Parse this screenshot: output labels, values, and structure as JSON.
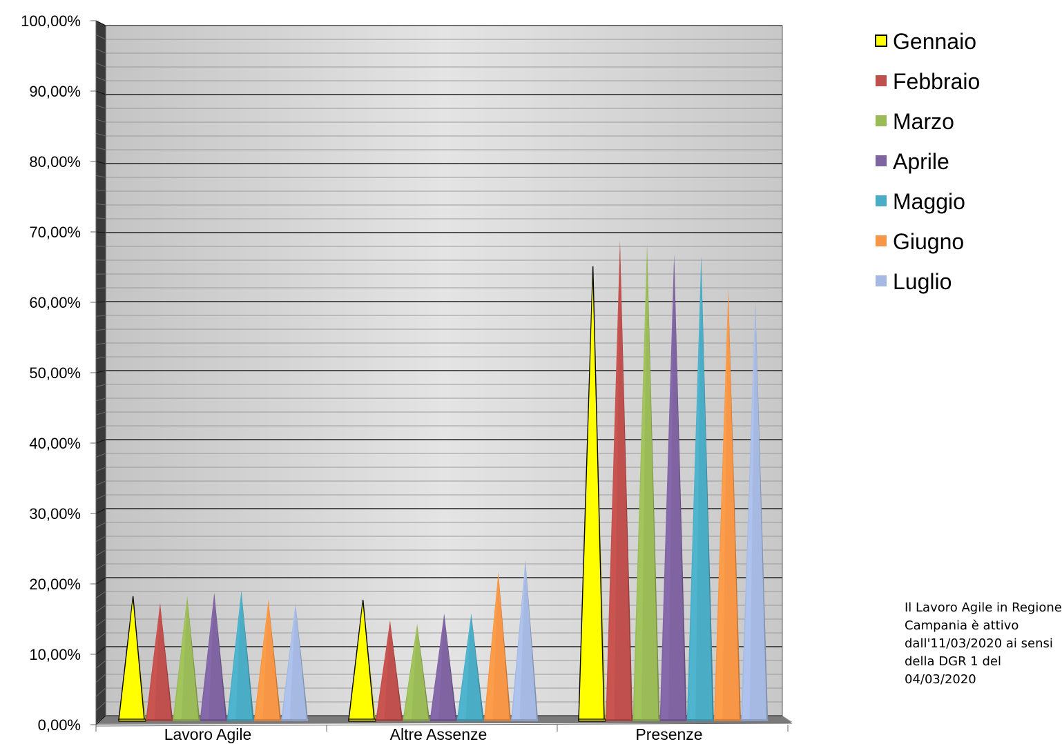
{
  "chart_data": {
    "type": "bar",
    "style": "3d-cone",
    "categories": [
      "Lavoro Agile",
      "Altre Assenze",
      "Presenze"
    ],
    "series": [
      {
        "name": "Gennaio",
        "color": "#FFFF00",
        "values": [
          17.5,
          17.0,
          65.3
        ]
      },
      {
        "name": "Febbraio",
        "color": "#C0504D",
        "values": [
          16.5,
          14.0,
          69.0
        ]
      },
      {
        "name": "Marzo",
        "color": "#9BBB59",
        "values": [
          17.5,
          13.5,
          68.5
        ]
      },
      {
        "name": "Aprile",
        "color": "#8064A2",
        "values": [
          18.0,
          15.0,
          67.0
        ]
      },
      {
        "name": "Maggio",
        "color": "#4BACC6",
        "values": [
          18.3,
          15.0,
          66.8
        ]
      },
      {
        "name": "Giugno",
        "color": "#F79646",
        "values": [
          17.0,
          21.0,
          62.0
        ]
      },
      {
        "name": "Luglio",
        "color": "#A5B9E2",
        "values": [
          16.5,
          22.8,
          60.3
        ]
      }
    ],
    "ylim": [
      0,
      100
    ],
    "ytick_labels": [
      "0,00%",
      "10,00%",
      "20,00%",
      "30,00%",
      "40,00%",
      "50,00%",
      "60,00%",
      "70,00%",
      "80,00%",
      "90,00%",
      "100,00%"
    ],
    "grid": true,
    "legend_position": "right"
  },
  "note": {
    "lines": [
      "Il Lavoro Agile in Regione",
      "Campania è attivo",
      "dall'11/03/2020 ai sensi",
      "della DGR 1 del",
      "04/03/2020"
    ]
  }
}
